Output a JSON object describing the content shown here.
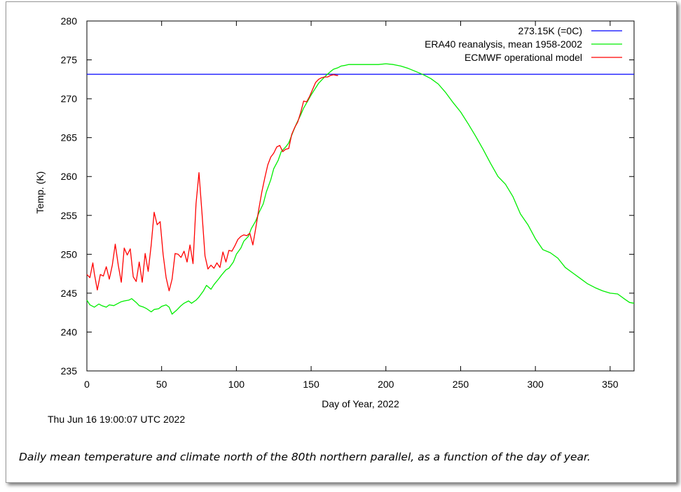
{
  "chart_data": {
    "type": "line",
    "xlabel": "Day of Year, 2022",
    "ylabel": "Temp. (K)",
    "xlim": [
      0,
      366
    ],
    "ylim": [
      235,
      280
    ],
    "xticks": [
      0,
      50,
      100,
      150,
      200,
      250,
      300,
      350
    ],
    "yticks": [
      235,
      240,
      245,
      250,
      255,
      260,
      265,
      270,
      275,
      280
    ],
    "legend_position": "top-right",
    "series": [
      {
        "name": "273.15K (=0C)",
        "color": "#0000ff",
        "x": [
          0,
          366
        ],
        "y": [
          273.15,
          273.15
        ]
      },
      {
        "name": "ERA40 reanalysis, mean 1958-2002",
        "color": "#00ee00",
        "x": [
          0,
          2,
          5,
          8,
          10,
          13,
          15,
          18,
          20,
          23,
          25,
          28,
          30,
          33,
          35,
          38,
          40,
          43,
          45,
          48,
          50,
          53,
          55,
          57,
          60,
          63,
          65,
          68,
          70,
          73,
          75,
          78,
          80,
          83,
          85,
          88,
          90,
          93,
          95,
          98,
          100,
          103,
          105,
          108,
          110,
          113,
          115,
          118,
          120,
          123,
          125,
          128,
          130,
          133,
          135,
          138,
          140,
          143,
          145,
          148,
          150,
          153,
          155,
          158,
          160,
          163,
          165,
          168,
          170,
          173,
          175,
          178,
          180,
          185,
          190,
          195,
          200,
          205,
          210,
          215,
          220,
          225,
          230,
          235,
          240,
          245,
          250,
          255,
          260,
          265,
          270,
          275,
          280,
          285,
          290,
          295,
          300,
          305,
          310,
          315,
          320,
          325,
          330,
          335,
          340,
          345,
          350,
          355,
          360,
          363,
          366
        ],
        "y": [
          244.1,
          243.5,
          243.2,
          243.6,
          243.4,
          243.2,
          243.5,
          243.4,
          243.6,
          243.9,
          244.0,
          244.1,
          244.3,
          243.8,
          243.4,
          243.2,
          243.0,
          242.6,
          242.9,
          243.0,
          243.3,
          243.5,
          243.2,
          242.3,
          242.8,
          243.4,
          243.7,
          244.0,
          243.7,
          244.1,
          244.5,
          245.3,
          246.0,
          245.5,
          246.1,
          246.8,
          247.3,
          248.0,
          248.2,
          249.0,
          250.0,
          250.8,
          251.7,
          252.3,
          253.3,
          254.3,
          255.3,
          256.5,
          258.0,
          259.6,
          261.0,
          262.1,
          263.2,
          263.8,
          264.3,
          265.8,
          266.7,
          267.9,
          268.8,
          269.8,
          270.5,
          271.4,
          272.0,
          272.6,
          273.0,
          273.5,
          273.8,
          274.0,
          274.2,
          274.3,
          274.4,
          274.4,
          274.4,
          274.4,
          274.4,
          274.4,
          274.5,
          274.4,
          274.2,
          273.9,
          273.5,
          273.1,
          272.6,
          271.9,
          270.8,
          269.5,
          268.3,
          266.8,
          265.2,
          263.5,
          261.7,
          260.0,
          259.0,
          257.4,
          255.2,
          253.8,
          252.0,
          250.6,
          250.2,
          249.5,
          248.3,
          247.6,
          246.9,
          246.2,
          245.7,
          245.3,
          245.0,
          244.9,
          244.2,
          243.8,
          243.7
        ]
      },
      {
        "name": "ECMWF operational model",
        "color": "#ff0000",
        "x": [
          0,
          2,
          4,
          5,
          7,
          9,
          11,
          13,
          15,
          17,
          19,
          21,
          23,
          25,
          27,
          29,
          31,
          33,
          35,
          37,
          39,
          41,
          43,
          45,
          47,
          49,
          51,
          53,
          55,
          57,
          59,
          61,
          63,
          65,
          67,
          69,
          71,
          73,
          75,
          77,
          79,
          81,
          83,
          85,
          87,
          89,
          91,
          93,
          95,
          97,
          99,
          101,
          103,
          105,
          107,
          109,
          111,
          113,
          115,
          117,
          119,
          121,
          123,
          125,
          127,
          129,
          131,
          133,
          135,
          137,
          139,
          141,
          143,
          145,
          147,
          149,
          151,
          153,
          155,
          157,
          159,
          161,
          163,
          165,
          167,
          168
        ],
        "y": [
          247.4,
          247.0,
          248.9,
          247.5,
          245.4,
          247.4,
          247.2,
          248.4,
          246.8,
          248.6,
          251.3,
          248.6,
          246.4,
          250.8,
          249.9,
          250.7,
          247.1,
          246.5,
          249.0,
          246.4,
          250.1,
          247.8,
          251.2,
          255.4,
          253.8,
          254.2,
          250.0,
          247.0,
          245.3,
          246.8,
          250.1,
          250.0,
          249.6,
          250.4,
          249.0,
          251.2,
          248.8,
          256.5,
          260.5,
          255.3,
          249.8,
          248.1,
          248.6,
          248.2,
          248.9,
          248.3,
          250.3,
          249.0,
          250.5,
          250.4,
          251.1,
          251.9,
          252.3,
          252.5,
          252.4,
          252.7,
          251.2,
          253.4,
          255.8,
          258.0,
          259.8,
          261.5,
          262.5,
          263.0,
          263.8,
          264.0,
          263.2,
          263.5,
          263.6,
          265.4,
          266.3,
          267.0,
          268.2,
          269.7,
          269.6,
          270.3,
          271.2,
          272.1,
          272.5,
          272.7,
          272.8,
          272.8,
          273.0,
          273.1,
          273.0,
          273.0
        ]
      }
    ]
  },
  "timestamp": "Thu Jun 16 19:00:07 UTC 2022",
  "caption": "Daily mean temperature and climate north of the 80th northern parallel, as a function of the day of year."
}
